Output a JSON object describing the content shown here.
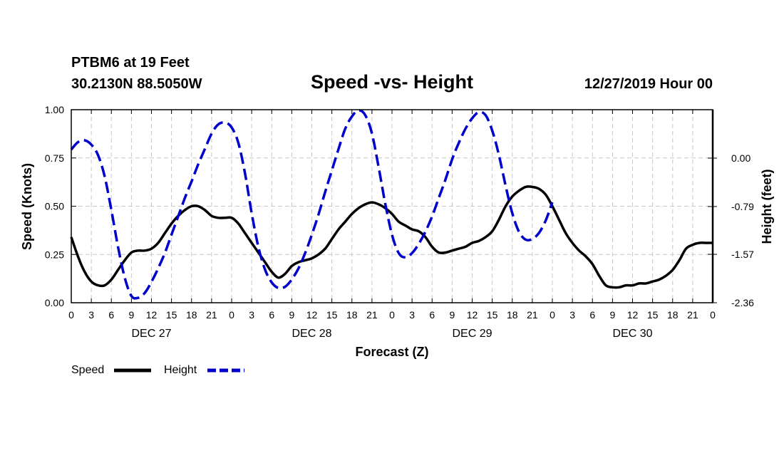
{
  "header": {
    "station": "PTBM6 at 19 Feet",
    "coords": "30.2130N 88.5050W",
    "title": "Speed -vs- Height",
    "datetime": "12/27/2019 Hour 00"
  },
  "chart_data": {
    "type": "line",
    "title": "Speed -vs- Height",
    "xlabel": "Forecast (Z)",
    "ylabel_left": "Speed (Knots)",
    "ylabel_right": "Height (feet)",
    "x_unit": "hours from 12/27/2019 00Z",
    "xlim": [
      0,
      96
    ],
    "ylim_left": [
      0,
      1
    ],
    "ylim_right": [
      -2.36,
      0.79
    ],
    "x_tick_labels": [
      "0",
      "3",
      "6",
      "9",
      "12",
      "15",
      "18",
      "21",
      "0",
      "3",
      "6",
      "9",
      "12",
      "15",
      "18",
      "21",
      "0",
      "3",
      "6",
      "9",
      "12",
      "15",
      "18",
      "21",
      "0",
      "3",
      "6",
      "9",
      "12",
      "15",
      "18",
      "21",
      "0"
    ],
    "y_ticks_left": [
      "0.00",
      "0.25",
      "0.50",
      "0.75",
      "1.00"
    ],
    "y_ticks_left_values": [
      0,
      0.25,
      0.5,
      0.75,
      1.0
    ],
    "y_ticks_right": [
      "0.00",
      "-0.79",
      "-1.57",
      "-2.36"
    ],
    "y_ticks_right_values": [
      0.0,
      -0.79,
      -1.57,
      -2.36
    ],
    "day_labels": [
      {
        "text": "DEC 27",
        "hour": 12
      },
      {
        "text": "DEC 28",
        "hour": 36
      },
      {
        "text": "DEC 29",
        "hour": 60
      },
      {
        "text": "DEC 30",
        "hour": 84
      }
    ],
    "grid": true,
    "legend_position": "bottom-left",
    "series": [
      {
        "name": "Speed",
        "axis": "left",
        "color": "#000000",
        "dash": "solid",
        "points": [
          [
            0,
            0.34
          ],
          [
            1,
            0.24
          ],
          [
            2,
            0.16
          ],
          [
            3,
            0.11
          ],
          [
            4,
            0.09
          ],
          [
            5,
            0.09
          ],
          [
            6,
            0.12
          ],
          [
            7,
            0.17
          ],
          [
            8,
            0.22
          ],
          [
            9,
            0.26
          ],
          [
            10,
            0.27
          ],
          [
            11,
            0.27
          ],
          [
            12,
            0.28
          ],
          [
            13,
            0.31
          ],
          [
            14,
            0.36
          ],
          [
            15,
            0.41
          ],
          [
            16,
            0.45
          ],
          [
            17,
            0.48
          ],
          [
            18,
            0.5
          ],
          [
            19,
            0.5
          ],
          [
            20,
            0.48
          ],
          [
            21,
            0.45
          ],
          [
            22,
            0.44
          ],
          [
            23,
            0.44
          ],
          [
            24,
            0.44
          ],
          [
            25,
            0.41
          ],
          [
            26,
            0.36
          ],
          [
            27,
            0.31
          ],
          [
            28,
            0.26
          ],
          [
            29,
            0.21
          ],
          [
            30,
            0.16
          ],
          [
            31,
            0.13
          ],
          [
            32,
            0.15
          ],
          [
            33,
            0.19
          ],
          [
            34,
            0.21
          ],
          [
            35,
            0.22
          ],
          [
            36,
            0.23
          ],
          [
            37,
            0.25
          ],
          [
            38,
            0.28
          ],
          [
            39,
            0.33
          ],
          [
            40,
            0.38
          ],
          [
            41,
            0.42
          ],
          [
            42,
            0.46
          ],
          [
            43,
            0.49
          ],
          [
            44,
            0.51
          ],
          [
            45,
            0.52
          ],
          [
            46,
            0.51
          ],
          [
            47,
            0.49
          ],
          [
            48,
            0.46
          ],
          [
            49,
            0.42
          ],
          [
            50,
            0.4
          ],
          [
            51,
            0.38
          ],
          [
            52,
            0.37
          ],
          [
            53,
            0.34
          ],
          [
            54,
            0.29
          ],
          [
            55,
            0.26
          ],
          [
            56,
            0.26
          ],
          [
            57,
            0.27
          ],
          [
            58,
            0.28
          ],
          [
            59,
            0.29
          ],
          [
            60,
            0.31
          ],
          [
            61,
            0.32
          ],
          [
            62,
            0.34
          ],
          [
            63,
            0.37
          ],
          [
            64,
            0.43
          ],
          [
            65,
            0.5
          ],
          [
            66,
            0.55
          ],
          [
            67,
            0.58
          ],
          [
            68,
            0.6
          ],
          [
            69,
            0.6
          ],
          [
            70,
            0.59
          ],
          [
            71,
            0.56
          ],
          [
            72,
            0.5
          ],
          [
            73,
            0.43
          ],
          [
            74,
            0.36
          ],
          [
            75,
            0.31
          ],
          [
            76,
            0.27
          ],
          [
            77,
            0.24
          ],
          [
            78,
            0.2
          ],
          [
            79,
            0.14
          ],
          [
            80,
            0.09
          ],
          [
            81,
            0.08
          ],
          [
            82,
            0.08
          ],
          [
            83,
            0.09
          ],
          [
            84,
            0.09
          ],
          [
            85,
            0.1
          ],
          [
            86,
            0.1
          ],
          [
            87,
            0.11
          ],
          [
            88,
            0.12
          ],
          [
            89,
            0.14
          ],
          [
            90,
            0.17
          ],
          [
            91,
            0.22
          ],
          [
            92,
            0.28
          ],
          [
            93,
            0.3
          ],
          [
            94,
            0.31
          ],
          [
            95,
            0.31
          ],
          [
            96,
            0.31
          ]
        ]
      },
      {
        "name": "Height",
        "axis": "right",
        "color": "#0000cc",
        "dash": "dashed",
        "points": [
          [
            0,
            0.14
          ],
          [
            1,
            0.26
          ],
          [
            2,
            0.29
          ],
          [
            3,
            0.22
          ],
          [
            4,
            0.05
          ],
          [
            5,
            -0.3
          ],
          [
            6,
            -0.85
          ],
          [
            7,
            -1.45
          ],
          [
            8,
            -1.95
          ],
          [
            9,
            -2.25
          ],
          [
            10,
            -2.28
          ],
          [
            11,
            -2.2
          ],
          [
            12,
            -2.02
          ],
          [
            13,
            -1.8
          ],
          [
            14,
            -1.55
          ],
          [
            15,
            -1.25
          ],
          [
            16,
            -0.95
          ],
          [
            17,
            -0.65
          ],
          [
            18,
            -0.38
          ],
          [
            19,
            -0.1
          ],
          [
            20,
            0.15
          ],
          [
            21,
            0.4
          ],
          [
            22,
            0.55
          ],
          [
            23,
            0.58
          ],
          [
            24,
            0.5
          ],
          [
            25,
            0.25
          ],
          [
            26,
            -0.25
          ],
          [
            27,
            -0.9
          ],
          [
            28,
            -1.45
          ],
          [
            29,
            -1.82
          ],
          [
            30,
            -2.03
          ],
          [
            31,
            -2.12
          ],
          [
            32,
            -2.1
          ],
          [
            33,
            -1.98
          ],
          [
            34,
            -1.8
          ],
          [
            35,
            -1.55
          ],
          [
            36,
            -1.25
          ],
          [
            37,
            -0.92
          ],
          [
            38,
            -0.55
          ],
          [
            39,
            -0.2
          ],
          [
            40,
            0.15
          ],
          [
            41,
            0.48
          ],
          [
            42,
            0.68
          ],
          [
            43,
            0.78
          ],
          [
            44,
            0.7
          ],
          [
            45,
            0.4
          ],
          [
            46,
            -0.15
          ],
          [
            47,
            -0.75
          ],
          [
            48,
            -1.25
          ],
          [
            49,
            -1.55
          ],
          [
            50,
            -1.62
          ],
          [
            51,
            -1.55
          ],
          [
            52,
            -1.4
          ],
          [
            53,
            -1.2
          ],
          [
            54,
            -0.95
          ],
          [
            55,
            -0.65
          ],
          [
            56,
            -0.35
          ],
          [
            57,
            -0.02
          ],
          [
            58,
            0.25
          ],
          [
            59,
            0.48
          ],
          [
            60,
            0.65
          ],
          [
            61,
            0.75
          ],
          [
            62,
            0.7
          ],
          [
            63,
            0.45
          ],
          [
            64,
            0.05
          ],
          [
            65,
            -0.45
          ],
          [
            66,
            -0.9
          ],
          [
            67,
            -1.2
          ],
          [
            68,
            -1.33
          ],
          [
            69,
            -1.32
          ],
          [
            70,
            -1.22
          ],
          [
            71,
            -1.02
          ],
          [
            72,
            -0.72
          ]
        ]
      }
    ]
  },
  "legend": {
    "speed_label": "Speed",
    "height_label": "Height",
    "speed_color": "#000000",
    "height_color": "#0000cc"
  }
}
